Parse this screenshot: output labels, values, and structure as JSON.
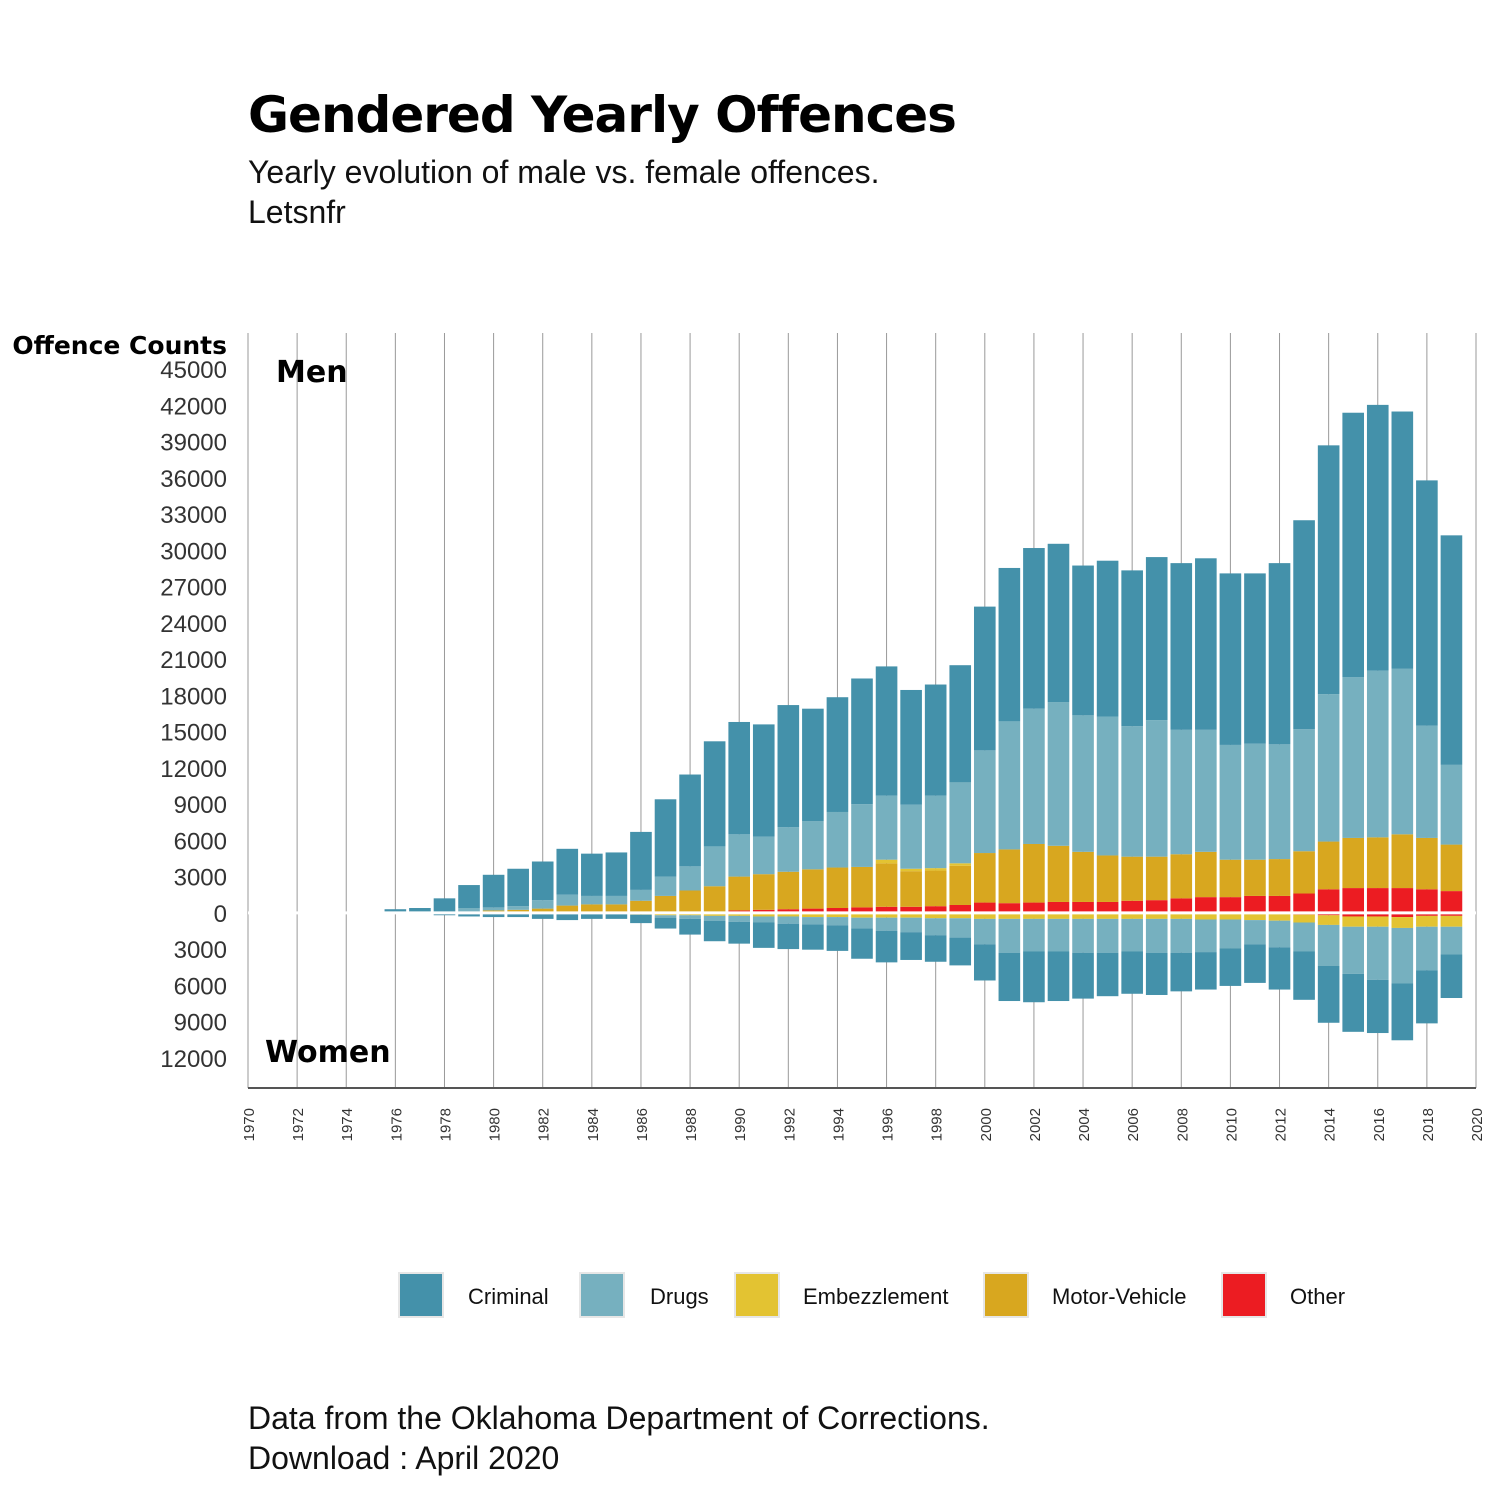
{
  "title": "Gendered Yearly Offences",
  "subtitle_line1": "Yearly evolution of male vs. female offences.",
  "subtitle_line2": "Letsnfr",
  "caption_line1": "Data from the Oklahoma Department of Corrections.",
  "caption_line2": "Download : April 2020",
  "chart_data": {
    "type": "bar",
    "stacked": true,
    "diverging": true,
    "title": "Gendered Yearly Offences",
    "ylabel": "Offence Counts",
    "upper_label": "Men",
    "lower_label": "Women",
    "xlim": [
      1970,
      2020
    ],
    "x_ticks": [
      1970,
      1972,
      1974,
      1976,
      1978,
      1980,
      1982,
      1984,
      1986,
      1988,
      1990,
      1992,
      1994,
      1996,
      1998,
      2000,
      2002,
      2004,
      2006,
      2008,
      2010,
      2012,
      2014,
      2016,
      2018,
      2020
    ],
    "y_ticks": [
      45000,
      42000,
      39000,
      36000,
      33000,
      30000,
      27000,
      24000,
      21000,
      18000,
      15000,
      12000,
      9000,
      6000,
      3000,
      0,
      -3000,
      -6000,
      -9000,
      -12000
    ],
    "y_tick_labels": [
      "45000",
      "42000",
      "39000",
      "36000",
      "33000",
      "30000",
      "27000",
      "24000",
      "21000",
      "18000",
      "15000",
      "12000",
      "9000",
      "6000",
      "3000",
      "0",
      "3000",
      "6000",
      "9000",
      "12000"
    ],
    "ylim": [
      -14500,
      48000
    ],
    "grid": "vertical",
    "legend_position": "bottom",
    "years": [
      1975,
      1976,
      1977,
      1978,
      1979,
      1980,
      1981,
      1982,
      1983,
      1984,
      1985,
      1986,
      1987,
      1988,
      1989,
      1990,
      1991,
      1992,
      1993,
      1994,
      1995,
      1996,
      1997,
      1998,
      1999,
      2000,
      2001,
      2002,
      2003,
      2004,
      2005,
      2006,
      2007,
      2008,
      2009,
      2010,
      2011,
      2012,
      2013,
      2014,
      2015,
      2016,
      2017,
      2018,
      2019
    ],
    "series": [
      {
        "name": "Other",
        "color": "#ec1c22",
        "men": [
          0,
          0,
          0,
          0,
          0,
          0,
          0,
          0,
          0,
          0,
          0,
          0,
          0,
          50,
          100,
          200,
          250,
          300,
          350,
          400,
          450,
          500,
          500,
          550,
          650,
          850,
          800,
          850,
          900,
          900,
          900,
          1000,
          1050,
          1200,
          1300,
          1300,
          1400,
          1400,
          1600,
          1950,
          2050,
          2050,
          2050,
          1950,
          1800
        ],
        "women": [
          0,
          0,
          0,
          0,
          0,
          0,
          0,
          0,
          0,
          0,
          0,
          0,
          0,
          0,
          0,
          0,
          0,
          0,
          0,
          0,
          0,
          0,
          0,
          0,
          0,
          0,
          0,
          0,
          0,
          0,
          0,
          0,
          0,
          0,
          50,
          50,
          100,
          100,
          150,
          200,
          300,
          300,
          350,
          250,
          250
        ]
      },
      {
        "name": "Motor-Vehicle",
        "color": "#d8a71f",
        "men": [
          0,
          0,
          0,
          0,
          100,
          200,
          250,
          350,
          600,
          700,
          700,
          1000,
          1400,
          1800,
          2100,
          2800,
          2950,
          3100,
          3250,
          3350,
          3350,
          3600,
          2950,
          2950,
          3250,
          4100,
          4450,
          4850,
          4650,
          4150,
          3850,
          3650,
          3600,
          3650,
          3750,
          3100,
          3000,
          3050,
          3500,
          3950,
          4150,
          4200,
          4450,
          4250,
          3850
        ]
      },
      {
        "name": "Embezzlement",
        "color": "#e3c332",
        "men": [
          0,
          0,
          0,
          0,
          0,
          0,
          0,
          0,
          0,
          0,
          0,
          0,
          0,
          0,
          0,
          0,
          0,
          0,
          0,
          0,
          0,
          300,
          200,
          200,
          200,
          0,
          0,
          0,
          0,
          0,
          0,
          0,
          0,
          0,
          0,
          0,
          0,
          0,
          0,
          0,
          0,
          0,
          0,
          0,
          0
        ],
        "women": [
          0,
          0,
          0,
          0,
          0,
          50,
          50,
          100,
          100,
          100,
          100,
          150,
          200,
          200,
          250,
          250,
          300,
          300,
          350,
          350,
          400,
          400,
          400,
          450,
          450,
          500,
          500,
          500,
          500,
          500,
          500,
          500,
          500,
          500,
          500,
          500,
          500,
          550,
          650,
          800,
          850,
          850,
          900,
          900,
          900
        ]
      },
      {
        "name": "Drugs",
        "color": "#76b0bf",
        "men": [
          0,
          0,
          0,
          0,
          300,
          250,
          300,
          700,
          900,
          700,
          700,
          900,
          1600,
          2000,
          3300,
          3500,
          3100,
          3700,
          4000,
          4600,
          5200,
          5300,
          5300,
          6000,
          6700,
          8500,
          10600,
          11200,
          11900,
          11300,
          11500,
          10800,
          11300,
          10300,
          10100,
          9500,
          9600,
          9500,
          10100,
          12200,
          13300,
          13800,
          13700,
          9300,
          6600
        ],
        "women": [
          0,
          0,
          0,
          0,
          0,
          0,
          0,
          0,
          0,
          0,
          0,
          0,
          200,
          300,
          400,
          500,
          500,
          600,
          600,
          700,
          900,
          1100,
          1200,
          1400,
          1600,
          2100,
          2800,
          2700,
          2700,
          2800,
          2800,
          2700,
          2800,
          2800,
          2700,
          2400,
          2000,
          2200,
          2400,
          3400,
          3900,
          4400,
          4600,
          3600,
          2300
        ]
      },
      {
        "name": "Criminal",
        "color": "#4491aa",
        "men": [
          100,
          300,
          400,
          1200,
          1900,
          2700,
          3100,
          3200,
          3800,
          3500,
          3600,
          4800,
          6400,
          7600,
          8700,
          9300,
          9300,
          10100,
          9300,
          9500,
          10400,
          10700,
          9500,
          9200,
          9700,
          11900,
          12700,
          13300,
          13100,
          12400,
          12900,
          12900,
          13500,
          13800,
          14200,
          14200,
          14100,
          15000,
          17300,
          20600,
          21900,
          22000,
          21300,
          20300,
          19000
        ],
        "women": [
          0,
          0,
          0,
          200,
          300,
          300,
          300,
          400,
          500,
          400,
          400,
          700,
          900,
          1300,
          1700,
          1800,
          2100,
          2100,
          2100,
          2100,
          2500,
          2600,
          2300,
          2200,
          2300,
          3000,
          4000,
          4200,
          4100,
          3800,
          3600,
          3500,
          3500,
          3200,
          3100,
          3100,
          3200,
          3500,
          4000,
          4700,
          4800,
          4400,
          4700,
          4400,
          3600
        ]
      }
    ]
  },
  "legend": [
    {
      "label": "Criminal",
      "color": "#4491aa",
      "icon": "legend-swatch"
    },
    {
      "label": "Drugs",
      "color": "#76b0bf",
      "icon": "legend-swatch"
    },
    {
      "label": "Embezzlement",
      "color": "#e3c332",
      "icon": "legend-swatch"
    },
    {
      "label": "Motor-Vehicle",
      "color": "#d8a71f",
      "icon": "legend-swatch"
    },
    {
      "label": "Other",
      "color": "#ec1c22",
      "icon": "legend-swatch"
    }
  ]
}
